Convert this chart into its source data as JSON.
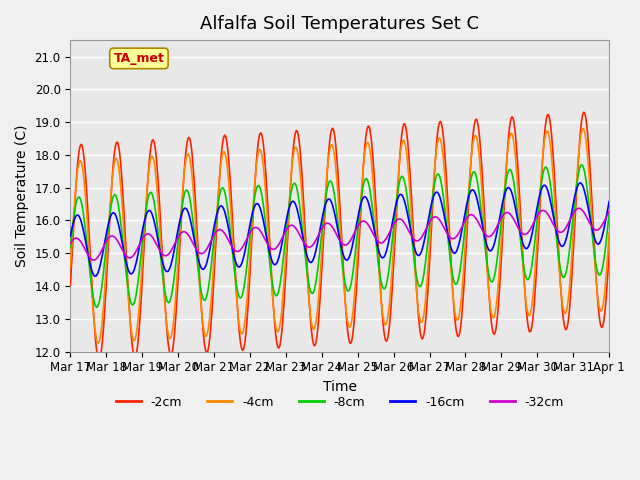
{
  "title": "Alfalfa Soil Temperatures Set C",
  "xlabel": "Time",
  "ylabel": "Soil Temperature (C)",
  "ylim": [
    12.0,
    21.5
  ],
  "yticks": [
    12.0,
    13.0,
    14.0,
    15.0,
    16.0,
    17.0,
    18.0,
    19.0,
    20.0,
    21.0
  ],
  "xtick_positions": [
    0,
    1,
    2,
    3,
    4,
    5,
    6,
    7,
    8,
    9,
    10,
    11,
    12,
    13,
    14,
    15
  ],
  "xtick_labels": [
    "Mar 17",
    "Mar 18",
    "Mar 19",
    "Mar 20",
    "Mar 21",
    "Mar 22",
    "Mar 23",
    "Mar 24",
    "Mar 25",
    "Mar 26",
    "Mar 27",
    "Mar 28",
    "Mar 29",
    "Mar 30",
    "Mar 31",
    "Apr 1"
  ],
  "colors": {
    "-2cm": "#FF2200",
    "-4cm": "#FF8800",
    "-8cm": "#00CC00",
    "-16cm": "#0000FF",
    "-32cm": "#CC00CC"
  },
  "legend_labels": [
    "-2cm",
    "-4cm",
    "-8cm",
    "-16cm",
    "-32cm"
  ],
  "annotation_text": "TA_met",
  "annotation_bg": "#FFFF99",
  "annotation_border": "#AA8800",
  "annotation_text_color": "#CC0000",
  "background_color": "#E8E8E8",
  "grid_color": "#FFFFFF",
  "title_fontsize": 13,
  "axis_label_fontsize": 10,
  "tick_fontsize": 8.5,
  "fig_facecolor": "#F0F0F0"
}
